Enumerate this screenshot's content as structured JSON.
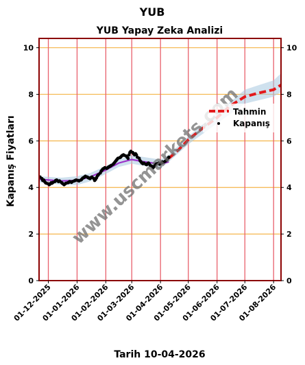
{
  "chart_data": {
    "type": "line",
    "suptitle": "YUB",
    "title": "YUB Yapay Zeka Analizi",
    "ylabel": "Kapanış Fiyatları",
    "xlabel": "Tarih 10-04-2026",
    "ylim": [
      0,
      10.4
    ],
    "yticks": [
      0,
      2,
      4,
      6,
      8,
      10
    ],
    "x_range": [
      "2025-11-21",
      "2026-08-09"
    ],
    "xticks": [
      {
        "date": "2025-12-01",
        "label": "01-12-2025"
      },
      {
        "date": "2026-01-01",
        "label": "01-01-2026"
      },
      {
        "date": "2026-02-01",
        "label": "01-02-2026"
      },
      {
        "date": "2026-03-01",
        "label": "01-03-2026"
      },
      {
        "date": "2026-04-01",
        "label": "01-04-2026"
      },
      {
        "date": "2026-05-01",
        "label": "01-05-2026"
      },
      {
        "date": "2026-06-01",
        "label": "01-06-2026"
      },
      {
        "date": "2026-07-01",
        "label": "01-07-2026"
      },
      {
        "date": "2026-08-01",
        "label": "01-08-2026"
      }
    ],
    "legend": {
      "placement": "right",
      "entries": [
        {
          "label": "Tahmin",
          "color": "#e31a1c",
          "style": "dashed"
        },
        {
          "label": "Kapanış",
          "color": "#000000",
          "style": "dot"
        }
      ]
    },
    "watermark": "www.uscmarkets.com",
    "colors": {
      "frame": "#8b0000",
      "hgrid": "#f5b54a",
      "vgrid": "#e8606c",
      "forecast": "#e31a1c",
      "trend": "#9b30c8",
      "band": "#a8c8e0"
    },
    "series": [
      {
        "name": "Kapanış",
        "kind": "scatter",
        "points": [
          [
            "2025-11-22",
            4.45
          ],
          [
            "2025-11-24",
            4.38
          ],
          [
            "2025-11-25",
            4.3
          ],
          [
            "2025-11-26",
            4.32
          ],
          [
            "2025-11-27",
            4.25
          ],
          [
            "2025-11-28",
            4.2
          ],
          [
            "2025-11-29",
            4.18
          ],
          [
            "2025-12-01",
            4.15
          ],
          [
            "2025-12-02",
            4.12
          ],
          [
            "2025-12-03",
            4.15
          ],
          [
            "2025-12-04",
            4.2
          ],
          [
            "2025-12-05",
            4.18
          ],
          [
            "2025-12-06",
            4.22
          ],
          [
            "2025-12-08",
            4.25
          ],
          [
            "2025-12-09",
            4.3
          ],
          [
            "2025-12-10",
            4.32
          ],
          [
            "2025-12-11",
            4.28
          ],
          [
            "2025-12-12",
            4.25
          ],
          [
            "2025-12-13",
            4.28
          ],
          [
            "2025-12-15",
            4.22
          ],
          [
            "2025-12-16",
            4.18
          ],
          [
            "2025-12-17",
            4.15
          ],
          [
            "2025-12-18",
            4.12
          ],
          [
            "2025-12-19",
            4.15
          ],
          [
            "2025-12-20",
            4.18
          ],
          [
            "2025-12-22",
            4.2
          ],
          [
            "2025-12-23",
            4.22
          ],
          [
            "2025-12-24",
            4.25
          ],
          [
            "2025-12-25",
            4.24
          ],
          [
            "2025-12-26",
            4.22
          ],
          [
            "2025-12-27",
            4.25
          ],
          [
            "2025-12-29",
            4.28
          ],
          [
            "2025-12-30",
            4.3
          ],
          [
            "2025-12-31",
            4.32
          ],
          [
            "2026-01-02",
            4.3
          ],
          [
            "2026-01-03",
            4.28
          ],
          [
            "2026-01-05",
            4.32
          ],
          [
            "2026-01-06",
            4.35
          ],
          [
            "2026-01-07",
            4.4
          ],
          [
            "2026-01-08",
            4.42
          ],
          [
            "2026-01-09",
            4.45
          ],
          [
            "2026-01-10",
            4.48
          ],
          [
            "2026-01-12",
            4.45
          ],
          [
            "2026-01-13",
            4.42
          ],
          [
            "2026-01-14",
            4.4
          ],
          [
            "2026-01-15",
            4.38
          ],
          [
            "2026-01-16",
            4.42
          ],
          [
            "2026-01-17",
            4.45
          ],
          [
            "2026-01-19",
            4.38
          ],
          [
            "2026-01-20",
            4.3
          ],
          [
            "2026-01-21",
            4.35
          ],
          [
            "2026-01-22",
            4.42
          ],
          [
            "2026-01-23",
            4.5
          ],
          [
            "2026-01-24",
            4.55
          ],
          [
            "2026-01-26",
            4.62
          ],
          [
            "2026-01-27",
            4.7
          ],
          [
            "2026-01-28",
            4.75
          ],
          [
            "2026-01-29",
            4.8
          ],
          [
            "2026-01-30",
            4.82
          ],
          [
            "2026-01-31",
            4.85
          ],
          [
            "2026-02-02",
            4.82
          ],
          [
            "2026-02-03",
            4.85
          ],
          [
            "2026-02-04",
            4.88
          ],
          [
            "2026-02-05",
            4.9
          ],
          [
            "2026-02-06",
            4.92
          ],
          [
            "2026-02-07",
            4.95
          ],
          [
            "2026-02-09",
            5.0
          ],
          [
            "2026-02-10",
            5.05
          ],
          [
            "2026-02-11",
            5.1
          ],
          [
            "2026-02-12",
            5.15
          ],
          [
            "2026-02-13",
            5.2
          ],
          [
            "2026-02-14",
            5.25
          ],
          [
            "2026-02-16",
            5.28
          ],
          [
            "2026-02-17",
            5.3
          ],
          [
            "2026-02-18",
            5.35
          ],
          [
            "2026-02-19",
            5.38
          ],
          [
            "2026-02-20",
            5.4
          ],
          [
            "2026-02-21",
            5.38
          ],
          [
            "2026-02-23",
            5.35
          ],
          [
            "2026-02-24",
            5.3
          ],
          [
            "2026-02-25",
            5.25
          ],
          [
            "2026-02-26",
            5.4
          ],
          [
            "2026-02-27",
            5.5
          ],
          [
            "2026-02-28",
            5.55
          ],
          [
            "2026-03-02",
            5.5
          ],
          [
            "2026-03-03",
            5.45
          ],
          [
            "2026-03-04",
            5.4
          ],
          [
            "2026-03-05",
            5.45
          ],
          [
            "2026-03-06",
            5.4
          ],
          [
            "2026-03-07",
            5.3
          ],
          [
            "2026-03-09",
            5.25
          ],
          [
            "2026-03-10",
            5.15
          ],
          [
            "2026-03-11",
            5.1
          ],
          [
            "2026-03-12",
            5.05
          ],
          [
            "2026-03-13",
            5.02
          ],
          [
            "2026-03-14",
            5.05
          ],
          [
            "2026-03-16",
            5.0
          ],
          [
            "2026-03-17",
            4.98
          ],
          [
            "2026-03-18",
            5.02
          ],
          [
            "2026-03-19",
            5.05
          ],
          [
            "2026-03-20",
            5.0
          ],
          [
            "2026-03-21",
            4.95
          ],
          [
            "2026-03-23",
            4.9
          ],
          [
            "2026-03-24",
            4.85
          ],
          [
            "2026-03-25",
            4.9
          ],
          [
            "2026-03-26",
            4.95
          ],
          [
            "2026-03-27",
            5.0
          ],
          [
            "2026-03-28",
            5.02
          ],
          [
            "2026-03-30",
            5.05
          ],
          [
            "2026-03-31",
            5.0
          ],
          [
            "2026-04-01",
            5.02
          ],
          [
            "2026-04-02",
            5.05
          ],
          [
            "2026-04-03",
            5.1
          ],
          [
            "2026-04-04",
            5.08
          ],
          [
            "2026-04-06",
            5.12
          ],
          [
            "2026-04-07",
            5.15
          ],
          [
            "2026-04-08",
            5.2
          ],
          [
            "2026-04-09",
            5.25
          ],
          [
            "2026-04-10",
            5.3
          ]
        ]
      },
      {
        "name": "Tahmin",
        "kind": "dashed-line",
        "points": [
          [
            "2026-04-10",
            5.25
          ],
          [
            "2026-04-20",
            5.6
          ],
          [
            "2026-05-01",
            6.05
          ],
          [
            "2026-05-15",
            6.5
          ],
          [
            "2026-06-01",
            7.0
          ],
          [
            "2026-06-15",
            7.5
          ],
          [
            "2026-07-01",
            7.9
          ],
          [
            "2026-07-15",
            8.05
          ],
          [
            "2026-08-01",
            8.2
          ],
          [
            "2026-08-09",
            8.4
          ]
        ]
      },
      {
        "name": "",
        "kind": "trend-line",
        "points": [
          [
            "2025-11-21",
            4.35
          ],
          [
            "2025-12-15",
            4.28
          ],
          [
            "2026-01-01",
            4.3
          ],
          [
            "2026-01-15",
            4.45
          ],
          [
            "2026-02-01",
            4.75
          ],
          [
            "2026-02-15",
            5.05
          ],
          [
            "2026-03-01",
            5.2
          ],
          [
            "2026-03-15",
            5.1
          ],
          [
            "2026-04-01",
            5.0
          ],
          [
            "2026-04-10",
            5.1
          ]
        ]
      },
      {
        "name": "",
        "kind": "band",
        "upper": [
          [
            "2025-11-21",
            4.48
          ],
          [
            "2025-12-15",
            4.42
          ],
          [
            "2026-01-01",
            4.48
          ],
          [
            "2026-01-15",
            4.62
          ],
          [
            "2026-02-01",
            4.92
          ],
          [
            "2026-02-15",
            5.2
          ],
          [
            "2026-03-01",
            5.38
          ],
          [
            "2026-03-15",
            5.3
          ],
          [
            "2026-04-01",
            5.2
          ],
          [
            "2026-04-10",
            5.4
          ],
          [
            "2026-05-01",
            6.2
          ],
          [
            "2026-06-01",
            7.2
          ],
          [
            "2026-07-01",
            8.2
          ],
          [
            "2026-08-01",
            8.6
          ],
          [
            "2026-08-09",
            8.9
          ]
        ],
        "lower": [
          [
            "2025-11-21",
            4.22
          ],
          [
            "2025-12-15",
            4.12
          ],
          [
            "2026-01-01",
            4.1
          ],
          [
            "2026-01-15",
            4.26
          ],
          [
            "2026-02-01",
            4.58
          ],
          [
            "2026-02-15",
            4.88
          ],
          [
            "2026-03-01",
            5.02
          ],
          [
            "2026-03-15",
            4.92
          ],
          [
            "2026-04-01",
            4.82
          ],
          [
            "2026-04-10",
            5.1
          ],
          [
            "2026-05-01",
            5.85
          ],
          [
            "2026-06-01",
            6.75
          ],
          [
            "2026-07-01",
            7.6
          ],
          [
            "2026-08-01",
            7.9
          ],
          [
            "2026-08-09",
            8.1
          ]
        ]
      }
    ]
  }
}
